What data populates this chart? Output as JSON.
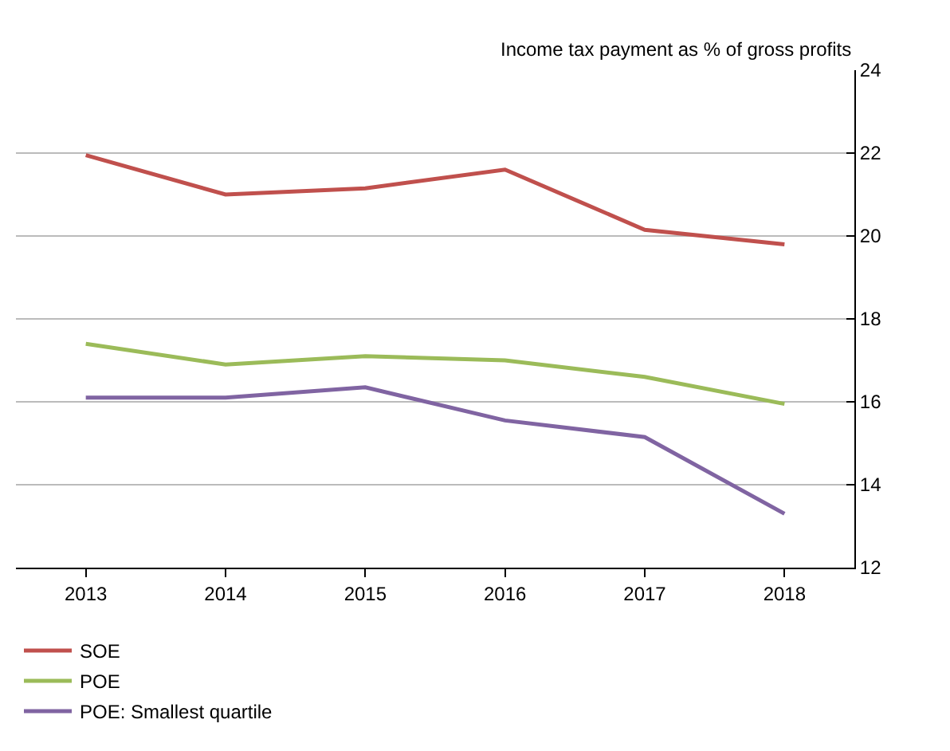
{
  "chart_data": {
    "type": "line",
    "ylabel": "Income tax payment as % of gross profits",
    "categories": [
      "2013",
      "2014",
      "2015",
      "2016",
      "2017",
      "2018"
    ],
    "series": [
      {
        "name": "SOE",
        "color": "#c0504d",
        "values": [
          21.95,
          21.0,
          21.15,
          21.6,
          20.15,
          19.8
        ]
      },
      {
        "name": "POE",
        "color": "#9bbb59",
        "values": [
          17.4,
          16.9,
          17.1,
          17.0,
          16.6,
          15.95
        ]
      },
      {
        "name": "POE: Smallest quartile",
        "color": "#8064a2",
        "values": [
          16.1,
          16.1,
          16.35,
          15.55,
          15.15,
          13.3
        ]
      }
    ],
    "ylim": [
      12,
      24
    ],
    "yticks": [
      12,
      14,
      16,
      18,
      20,
      22,
      24
    ],
    "grid": "y",
    "legend": "bottom",
    "marker": "none",
    "line_style": "solid"
  }
}
